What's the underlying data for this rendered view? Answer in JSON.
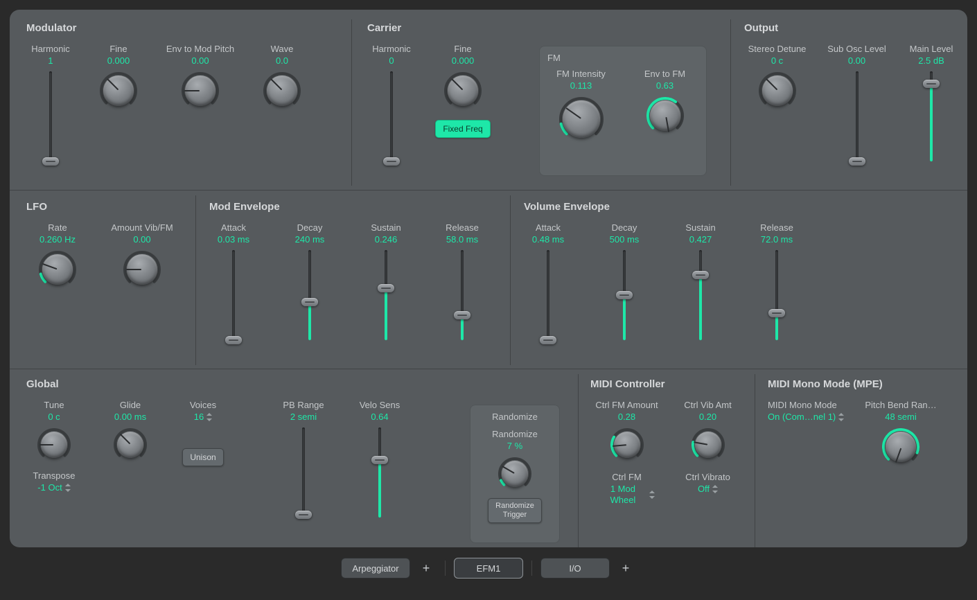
{
  "colors": {
    "background": "#565a5d",
    "accent": "#1ee7a8",
    "text": "#c4c7c9",
    "title": "#d6d8da"
  },
  "sections": {
    "modulator": {
      "title": "Modulator",
      "harmonic": {
        "label": "Harmonic",
        "value": "1",
        "slider_pct": 0
      },
      "fine": {
        "label": "Fine",
        "value": "0.000",
        "knob_deg": 225,
        "arc_deg": 0
      },
      "envToModPitch": {
        "label": "Env to Mod Pitch",
        "value": "0.00",
        "knob_deg": 180,
        "arc_deg": 0
      },
      "wave": {
        "label": "Wave",
        "value": "0.0",
        "knob_deg": 225,
        "arc_deg": 0
      }
    },
    "carrier": {
      "title": "Carrier",
      "harmonic": {
        "label": "Harmonic",
        "value": "0",
        "slider_pct": 0
      },
      "fine": {
        "label": "Fine",
        "value": "0.000",
        "knob_deg": 225,
        "arc_deg": 0
      },
      "fixedFreq": {
        "label": "Fixed Freq",
        "active": true
      },
      "fm": {
        "title": "FM",
        "intensity": {
          "label": "FM Intensity",
          "value": "0.113",
          "knob_deg": 215,
          "arc_deg": 32
        },
        "envToFm": {
          "label": "Env to FM",
          "value": "0.63",
          "knob_deg": 80,
          "arc_deg": 172
        }
      }
    },
    "output": {
      "title": "Output",
      "stereoDetune": {
        "label": "Stereo Detune",
        "value": "0 c",
        "knob_deg": 225,
        "arc_deg": 0
      },
      "subOsc": {
        "label": "Sub Osc Level",
        "value": "0.00",
        "slider_pct": 0
      },
      "mainLevel": {
        "label": "Main Level",
        "value": "2.5 dB",
        "slider_pct": 86
      }
    },
    "lfo": {
      "title": "LFO",
      "rate": {
        "label": "Rate",
        "value": "0.260 Hz",
        "knob_deg": 200,
        "arc_deg": 30
      },
      "amount": {
        "label": "Amount Vib/FM",
        "value": "0.00",
        "knob_deg": 180,
        "arc_deg": 0
      }
    },
    "modEnv": {
      "title": "Mod Envelope",
      "attack": {
        "label": "Attack",
        "value": "0.03 ms",
        "slider_pct": 0
      },
      "decay": {
        "label": "Decay",
        "value": "240 ms",
        "slider_pct": 42
      },
      "sustain": {
        "label": "Sustain",
        "value": "0.246",
        "slider_pct": 58
      },
      "release": {
        "label": "Release",
        "value": "58.0 ms",
        "slider_pct": 28
      }
    },
    "volEnv": {
      "title": "Volume Envelope",
      "attack": {
        "label": "Attack",
        "value": "0.48 ms",
        "slider_pct": 0
      },
      "decay": {
        "label": "Decay",
        "value": "500 ms",
        "slider_pct": 50
      },
      "sustain": {
        "label": "Sustain",
        "value": "0.427",
        "slider_pct": 72
      },
      "release": {
        "label": "Release",
        "value": "72.0 ms",
        "slider_pct": 30
      }
    },
    "global": {
      "title": "Global",
      "tune": {
        "label": "Tune",
        "value": "0 c",
        "knob_deg": 180,
        "arc_deg": 0
      },
      "glide": {
        "label": "Glide",
        "value": "0.00 ms",
        "knob_deg": 225,
        "arc_deg": 0
      },
      "voices": {
        "label": "Voices",
        "value": "16"
      },
      "unison": {
        "label": "Unison",
        "active": false
      },
      "transpose": {
        "label": "Transpose",
        "value": "-1 Oct"
      },
      "pbRange": {
        "label": "PB Range",
        "value": "2 semi",
        "slider_pct": 3
      },
      "veloSens": {
        "label": "Velo Sens",
        "value": "0.64",
        "slider_pct": 64
      },
      "randomize": {
        "title": "Randomize",
        "label": "Randomize",
        "value": "7 %",
        "knob_deg": 210,
        "arc_deg": 20,
        "trigger": "Randomize Trigger"
      }
    },
    "midiCtrl": {
      "title": "MIDI Controller",
      "fmAmount": {
        "label": "Ctrl FM Amount",
        "value": "0.28",
        "knob_deg": 175,
        "arc_deg": 76
      },
      "vibAmt": {
        "label": "Ctrl Vib Amt",
        "value": "0.20",
        "knob_deg": 190,
        "arc_deg": 55
      },
      "ctrlFm": {
        "label": "Ctrl FM",
        "value": "1 Mod Wheel"
      },
      "ctrlVibrato": {
        "label": "Ctrl Vibrato",
        "value": "Off"
      }
    },
    "midiMono": {
      "title": "MIDI Mono Mode (MPE)",
      "mode": {
        "label": "MIDI Mono Mode",
        "value": "On (Com…nel 1)"
      },
      "pbRange": {
        "label": "Pitch Bend Ran…",
        "value": "48 semi",
        "knob_deg": 110,
        "arc_deg": 245
      }
    }
  },
  "bottomBar": {
    "arpeggiator": "Arpeggiator",
    "efm1": "EFM1",
    "io": "I/O"
  }
}
